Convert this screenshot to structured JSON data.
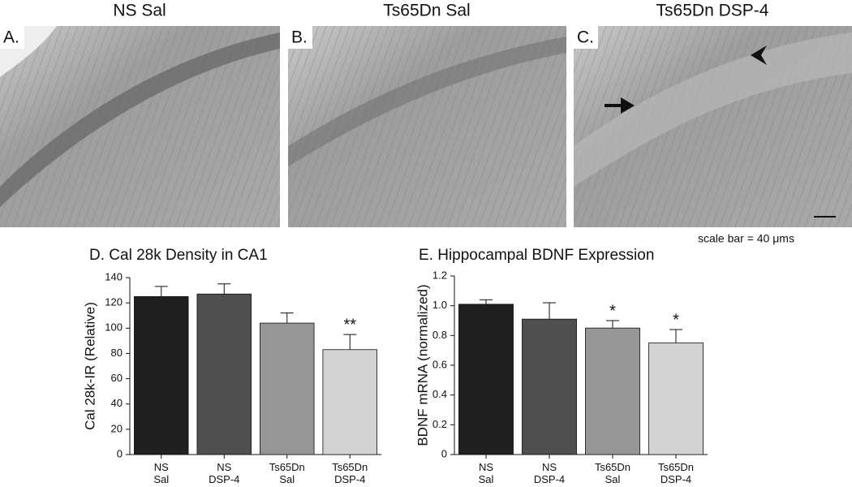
{
  "panels": [
    {
      "letter": "A.",
      "title": "NS Sal"
    },
    {
      "letter": "B.",
      "title": "Ts65Dn Sal"
    },
    {
      "letter": "C.",
      "title": "Ts65Dn DSP-4"
    }
  ],
  "scale_bar_label": "scale bar = 40 μms",
  "chart_data": [
    {
      "type": "bar",
      "title": "D. Cal 28k Density in CA1",
      "y_label": "Cal 28k-IR (Relative)",
      "categories": [
        "NS\nSal",
        "NS\nDSP-4",
        "Ts65Dn\nSal",
        "Ts65Dn\nDSP-4"
      ],
      "values": [
        125,
        127,
        104,
        83
      ],
      "errors": [
        8,
        8,
        8,
        12
      ],
      "value_annotations": [
        null,
        null,
        null,
        "**"
      ],
      "colors": [
        "#1f1f1f",
        "#4f4f4f",
        "#969696",
        "#d2d2d2"
      ],
      "ylim": [
        0,
        140
      ],
      "yticks": [
        0,
        20,
        40,
        60,
        80,
        100,
        120,
        140
      ]
    },
    {
      "type": "bar",
      "title": "E. Hippocampal BDNF Expression",
      "y_label": "BDNF mRNA (normalized)",
      "categories": [
        "NS\nSal",
        "NS\nDSP-4",
        "Ts65Dn\nSal",
        "Ts65Dn\nDSP-4"
      ],
      "values": [
        1.01,
        0.91,
        0.85,
        0.75
      ],
      "errors": [
        0.03,
        0.11,
        0.05,
        0.09
      ],
      "value_annotations": [
        null,
        null,
        "*",
        "*"
      ],
      "colors": [
        "#1f1f1f",
        "#4f4f4f",
        "#969696",
        "#d2d2d2"
      ],
      "ylim": [
        0,
        1.2
      ],
      "yticks": [
        0,
        0.2,
        0.4,
        0.6,
        0.8,
        {
          "value": 1,
          "label": "1.0"
        },
        1.2
      ]
    }
  ]
}
